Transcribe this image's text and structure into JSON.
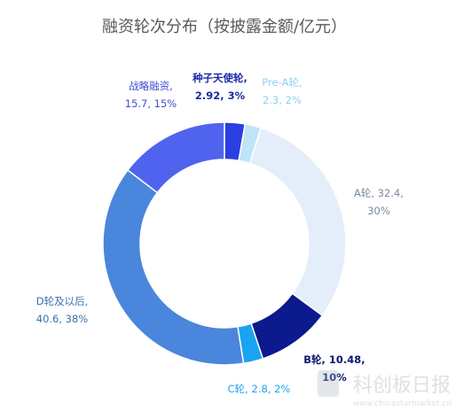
{
  "chart_data": {
    "type": "pie",
    "variant": "donut",
    "title": "融资轮次分布（按披露金额/亿元）",
    "slices": [
      {
        "name": "种子天使轮",
        "value": 2.92,
        "percent": "3%",
        "label": [
          "种子天使轮,",
          "2.92, 3%"
        ],
        "color": "#2a3fe0",
        "label_color": "#1a2aa8",
        "bold": true
      },
      {
        "name": "Pre-A轮",
        "value": 2.3,
        "percent": "2%",
        "label": [
          "Pre-A轮,",
          "2.3, 2%"
        ],
        "color": "#bfe3f7",
        "label_color": "#8fd0f2",
        "bold": false
      },
      {
        "name": "A轮",
        "value": 32.4,
        "percent": "30%",
        "label": [
          "A轮, 32.4,",
          "30%"
        ],
        "color": "#e3eefa",
        "label_color": "#7b8aa0",
        "bold": false
      },
      {
        "name": "B轮",
        "value": 10.48,
        "percent": "10%",
        "label": [
          "B轮, 10.48,",
          "10%"
        ],
        "color": "#0b1a8c",
        "label_color": "#0b1a6e",
        "bold": true
      },
      {
        "name": "C轮",
        "value": 2.8,
        "percent": "2%",
        "label": [
          "C轮, 2.8, 2%"
        ],
        "color": "#1aa3f0",
        "label_color": "#1aa3f0",
        "bold": false
      },
      {
        "name": "D轮及以后",
        "value": 40.6,
        "percent": "38%",
        "label": [
          "D轮及以后,",
          "40.6, 38%"
        ],
        "color": "#4a86dc",
        "label_color": "#3b6fb0",
        "bold": false
      },
      {
        "name": "战略融资",
        "value": 15.7,
        "percent": "15%",
        "label": [
          "战略融资,",
          "15.7, 15%"
        ],
        "color": "#4f63ee",
        "label_color": "#3d4fd6",
        "bold": false
      }
    ]
  },
  "watermark": {
    "text": "科创板日报",
    "url": "www.chinastarmarket.cn"
  }
}
